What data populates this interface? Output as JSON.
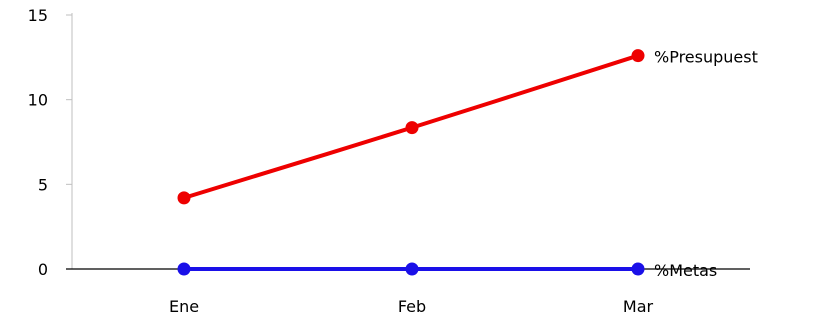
{
  "chart_data": {
    "type": "line",
    "title": "",
    "xlabel": "",
    "ylabel": "",
    "categories": [
      "Ene",
      "Feb",
      "Mar"
    ],
    "ylim": [
      0,
      15
    ],
    "yticks": [
      "0",
      "5",
      "10",
      "15"
    ],
    "grid": false,
    "legend": "none",
    "series": [
      {
        "name": "%Presupuest",
        "values": [
          4.2,
          8.35,
          12.6
        ],
        "color": "#ee0000",
        "smooth": true
      },
      {
        "name": "%Metas",
        "values": [
          0,
          0,
          0
        ],
        "color": "#1a10e8",
        "smooth": true
      }
    ]
  }
}
